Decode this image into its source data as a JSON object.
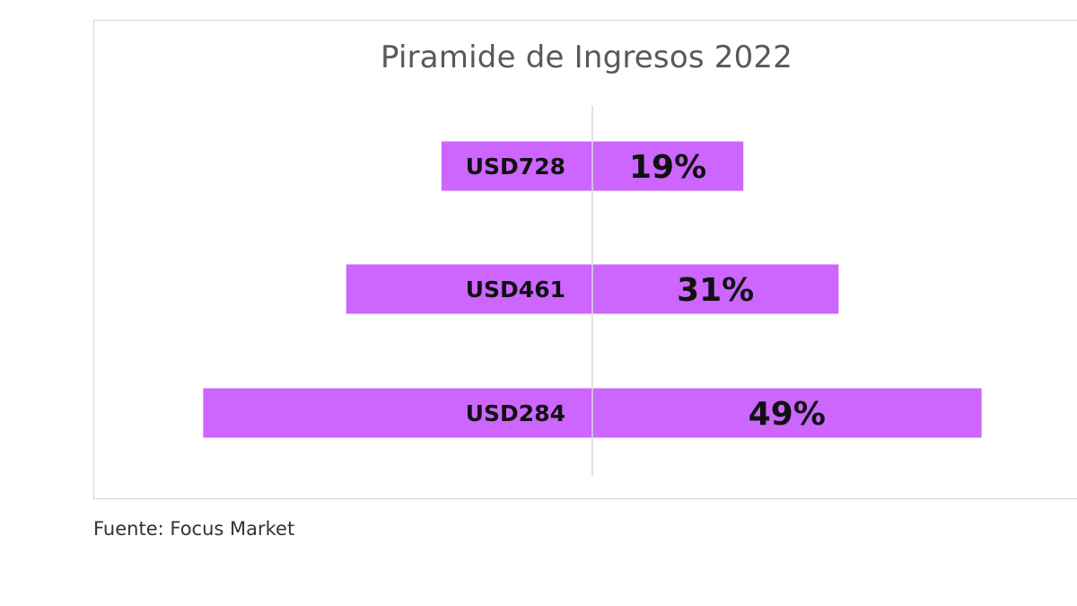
{
  "chart_data": {
    "type": "bar",
    "title": "Piramide de Ingresos 2022",
    "orientation": "horizontal-centered",
    "categories": [
      "USD728",
      "USD461",
      "USD284"
    ],
    "values": [
      19,
      31,
      49
    ],
    "value_labels": [
      "19%",
      "31%",
      "49%"
    ],
    "unit": "%",
    "bar_color": "#cc66ff",
    "center_line_color": "#d9d9d9",
    "grid": false,
    "legend": "none"
  },
  "footer": {
    "source": "Fuente: Focus Market"
  }
}
